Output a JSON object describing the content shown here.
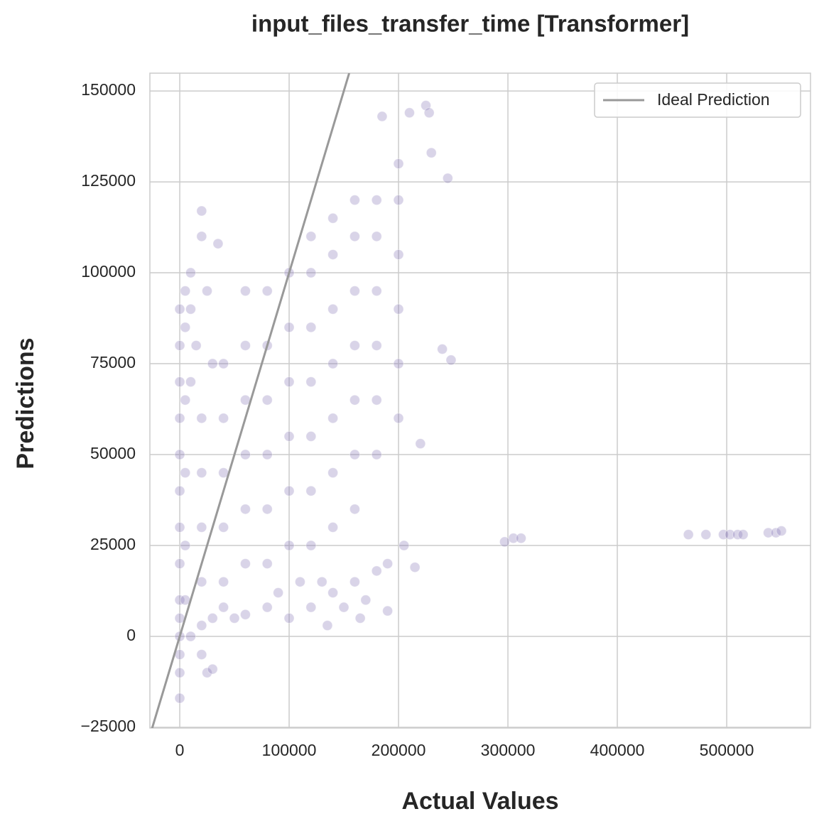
{
  "chart_data": {
    "type": "scatter",
    "title": "input_files_transfer_time [Transformer]",
    "x_label": "Actual Values",
    "y_label": "Predictions",
    "xlim": [
      -27300,
      576600
    ],
    "ylim": [
      -25200,
      154900
    ],
    "xticks": [
      0,
      100000,
      200000,
      300000,
      400000,
      500000
    ],
    "yticks": [
      {
        "value": -25000,
        "label": "−25000"
      },
      0,
      25000,
      50000,
      75000,
      100000,
      125000,
      150000
    ],
    "grid": true,
    "legend": "upper right",
    "ideal_line": {
      "name": "Ideal Prediction",
      "color": "#999999",
      "x": [
        -25200,
        154900
      ],
      "values": [
        -25200,
        154900
      ]
    },
    "points": {
      "color": "#8172b3",
      "opacity": 0.3,
      "x": [
        0,
        0,
        0,
        0,
        0,
        0,
        0,
        0,
        0,
        0,
        0,
        0,
        0,
        0,
        5000,
        10000,
        5000,
        5000,
        5000,
        5000,
        5000,
        10000,
        10000,
        10000,
        15000,
        20000,
        20000,
        25000,
        30000,
        35000,
        20000,
        30000,
        40000,
        50000,
        60000,
        80000,
        100000,
        120000,
        140000,
        160000,
        180000,
        190000,
        170000,
        150000,
        130000,
        110000,
        90000,
        25000,
        30000,
        20000,
        20000,
        20000,
        20000,
        20000,
        40000,
        40000,
        40000,
        40000,
        40000,
        60000,
        60000,
        60000,
        60000,
        60000,
        60000,
        80000,
        80000,
        80000,
        80000,
        80000,
        80000,
        100000,
        100000,
        100000,
        100000,
        100000,
        100000,
        120000,
        120000,
        120000,
        120000,
        120000,
        120000,
        120000,
        140000,
        140000,
        140000,
        140000,
        140000,
        140000,
        140000,
        160000,
        160000,
        160000,
        160000,
        160000,
        160000,
        160000,
        180000,
        180000,
        180000,
        180000,
        180000,
        180000,
        200000,
        200000,
        200000,
        200000,
        200000,
        200000,
        185000,
        210000,
        225000,
        228000,
        230000,
        245000,
        240000,
        248000,
        220000,
        205000,
        215000,
        190000,
        165000,
        135000,
        297000,
        305000,
        312000,
        465000,
        481000,
        497000,
        503000,
        510000,
        515000,
        538000,
        545000,
        550000
      ],
      "values": [
        -17000,
        -10000,
        -5000,
        0,
        5000,
        10000,
        20000,
        30000,
        40000,
        50000,
        60000,
        70000,
        80000,
        90000,
        95000,
        100000,
        85000,
        65000,
        45000,
        25000,
        10000,
        0,
        70000,
        90000,
        80000,
        117000,
        110000,
        95000,
        75000,
        108000,
        3000,
        5000,
        8000,
        5000,
        6000,
        8000,
        5000,
        8000,
        12000,
        15000,
        18000,
        20000,
        10000,
        8000,
        15000,
        15000,
        12000,
        -10000,
        -9000,
        -5000,
        15000,
        30000,
        45000,
        60000,
        15000,
        30000,
        45000,
        60000,
        75000,
        20000,
        35000,
        50000,
        65000,
        80000,
        95000,
        20000,
        35000,
        50000,
        65000,
        80000,
        95000,
        25000,
        40000,
        55000,
        70000,
        85000,
        100000,
        25000,
        40000,
        55000,
        70000,
        85000,
        100000,
        110000,
        30000,
        45000,
        60000,
        75000,
        90000,
        105000,
        115000,
        35000,
        50000,
        65000,
        80000,
        95000,
        110000,
        120000,
        50000,
        65000,
        80000,
        95000,
        110000,
        120000,
        60000,
        75000,
        90000,
        105000,
        120000,
        130000,
        143000,
        144000,
        146000,
        144000,
        133000,
        126000,
        79000,
        76000,
        53000,
        25000,
        19000,
        7000,
        5000,
        3000,
        26000,
        27000,
        27000,
        28000,
        28000,
        28000,
        28000,
        28000,
        28000,
        28500,
        28500,
        29000
      ]
    }
  }
}
